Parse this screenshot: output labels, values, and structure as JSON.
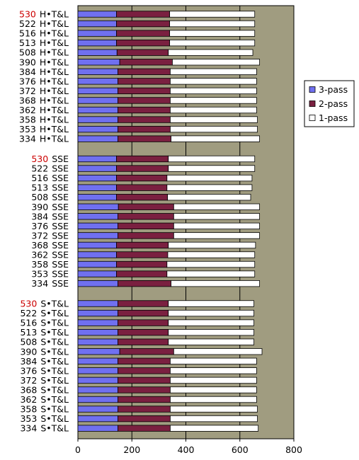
{
  "colors": {
    "plot_background": "#A09C80",
    "highlight_label": "#CC0000",
    "normal_label": "#000000"
  },
  "chart_data": {
    "type": "bar",
    "orientation": "horizontal",
    "stacked": true,
    "title": "",
    "xlabel": "",
    "ylabel": "",
    "xlim": [
      0,
      800
    ],
    "x_ticks": [
      0,
      200,
      400,
      600,
      800
    ],
    "grid": "vertical",
    "legend_position": "right",
    "series": [
      {
        "name": "3-pass",
        "color": "#7070F0"
      },
      {
        "name": "2-pass",
        "color": "#7A2040"
      },
      {
        "name": "1-pass",
        "color": "#FFFFFF"
      }
    ],
    "groups": [
      {
        "label": "H•T&L",
        "rows": [
          {
            "id": "530",
            "highlight": true,
            "cumulative": [
              143,
              340,
              655
            ]
          },
          {
            "id": "522",
            "highlight": false,
            "cumulative": [
              143,
              340,
              655
            ]
          },
          {
            "id": "516",
            "highlight": false,
            "cumulative": [
              143,
              340,
              655
            ]
          },
          {
            "id": "513",
            "highlight": false,
            "cumulative": [
              143,
              340,
              655
            ]
          },
          {
            "id": "508",
            "highlight": false,
            "cumulative": [
              145,
              335,
              648
            ]
          },
          {
            "id": "390",
            "highlight": false,
            "cumulative": [
              155,
              350,
              673
            ]
          },
          {
            "id": "384",
            "highlight": false,
            "cumulative": [
              148,
              342,
              662
            ]
          },
          {
            "id": "376",
            "highlight": false,
            "cumulative": [
              148,
              342,
              662
            ]
          },
          {
            "id": "372",
            "highlight": false,
            "cumulative": [
              148,
              342,
              662
            ]
          },
          {
            "id": "368",
            "highlight": false,
            "cumulative": [
              148,
              342,
              662
            ]
          },
          {
            "id": "362",
            "highlight": false,
            "cumulative": [
              148,
              342,
              662
            ]
          },
          {
            "id": "358",
            "highlight": false,
            "cumulative": [
              148,
              342,
              665
            ]
          },
          {
            "id": "353",
            "highlight": false,
            "cumulative": [
              148,
              342,
              665
            ]
          },
          {
            "id": "334",
            "highlight": false,
            "cumulative": [
              148,
              345,
              673
            ]
          }
        ]
      },
      {
        "label": "SSE",
        "rows": [
          {
            "id": "530",
            "highlight": true,
            "cumulative": [
              143,
              335,
              655
            ]
          },
          {
            "id": "522",
            "highlight": false,
            "cumulative": [
              143,
              335,
              655
            ]
          },
          {
            "id": "516",
            "highlight": false,
            "cumulative": [
              143,
              330,
              645
            ]
          },
          {
            "id": "513",
            "highlight": false,
            "cumulative": [
              143,
              330,
              645
            ]
          },
          {
            "id": "508",
            "highlight": false,
            "cumulative": [
              143,
              332,
              640
            ]
          },
          {
            "id": "390",
            "highlight": false,
            "cumulative": [
              150,
              355,
              673
            ]
          },
          {
            "id": "384",
            "highlight": false,
            "cumulative": [
              148,
              355,
              673
            ]
          },
          {
            "id": "376",
            "highlight": false,
            "cumulative": [
              148,
              355,
              673
            ]
          },
          {
            "id": "372",
            "highlight": false,
            "cumulative": [
              148,
              355,
              673
            ]
          },
          {
            "id": "368",
            "highlight": false,
            "cumulative": [
              143,
              335,
              658
            ]
          },
          {
            "id": "362",
            "highlight": false,
            "cumulative": [
              143,
              333,
              655
            ]
          },
          {
            "id": "358",
            "highlight": false,
            "cumulative": [
              143,
              330,
              655
            ]
          },
          {
            "id": "353",
            "highlight": false,
            "cumulative": [
              143,
              330,
              655
            ]
          },
          {
            "id": "334",
            "highlight": false,
            "cumulative": [
              148,
              345,
              673
            ]
          }
        ]
      },
      {
        "label": "S•T&L",
        "rows": [
          {
            "id": "530",
            "highlight": true,
            "cumulative": [
              148,
              335,
              652
            ]
          },
          {
            "id": "522",
            "highlight": false,
            "cumulative": [
              148,
              335,
              652
            ]
          },
          {
            "id": "516",
            "highlight": false,
            "cumulative": [
              148,
              335,
              652
            ]
          },
          {
            "id": "513",
            "highlight": false,
            "cumulative": [
              148,
              335,
              652
            ]
          },
          {
            "id": "508",
            "highlight": false,
            "cumulative": [
              148,
              335,
              652
            ]
          },
          {
            "id": "390",
            "highlight": false,
            "cumulative": [
              155,
              355,
              682
            ]
          },
          {
            "id": "384",
            "highlight": false,
            "cumulative": [
              148,
              342,
              662
            ]
          },
          {
            "id": "376",
            "highlight": false,
            "cumulative": [
              148,
              342,
              662
            ]
          },
          {
            "id": "372",
            "highlight": false,
            "cumulative": [
              148,
              342,
              662
            ]
          },
          {
            "id": "368",
            "highlight": false,
            "cumulative": [
              148,
              342,
              662
            ]
          },
          {
            "id": "362",
            "highlight": false,
            "cumulative": [
              148,
              342,
              662
            ]
          },
          {
            "id": "358",
            "highlight": false,
            "cumulative": [
              148,
              342,
              665
            ]
          },
          {
            "id": "353",
            "highlight": false,
            "cumulative": [
              148,
              342,
              665
            ]
          },
          {
            "id": "334",
            "highlight": false,
            "cumulative": [
              148,
              342,
              668
            ]
          }
        ]
      }
    ]
  }
}
